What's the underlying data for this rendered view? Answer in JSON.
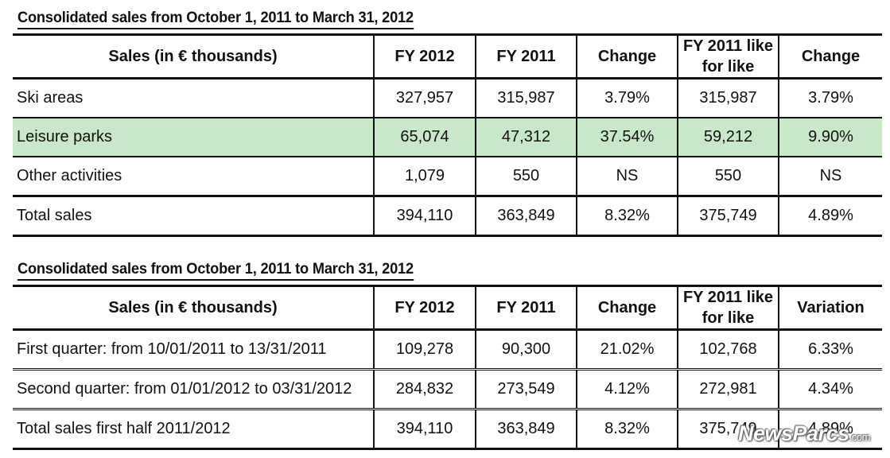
{
  "table1": {
    "caption": "Consolidated sales from October 1, 2011 to March 31, 2012",
    "headers": [
      "Sales (in € thousands)",
      "FY 2012",
      "FY 2011",
      "Change",
      "FY 2011  like for like",
      "Change"
    ],
    "rows": [
      [
        "Ski areas",
        "327,957",
        "315,987",
        "3.79%",
        "315,987",
        "3.79%"
      ],
      [
        "Leisure parks",
        "65,074",
        "47,312",
        "37.54%",
        "59,212",
        "9.90%"
      ],
      [
        "Other activities",
        "1,079",
        "550",
        "NS",
        "550",
        "NS"
      ],
      [
        "Total sales",
        "394,110",
        "363,849",
        "8.32%",
        "375,749",
        "4.89%"
      ]
    ],
    "highlight_color": "#c9e7c9"
  },
  "table2": {
    "caption": "Consolidated sales from October 1, 2011 to March 31, 2012",
    "headers": [
      "Sales (in € thousands)",
      "FY 2012",
      "FY 2011",
      "Change",
      "FY 2011 like for like",
      "Variation"
    ],
    "rows": [
      [
        "First quarter: from 10/01/2011 to 13/31/2011",
        "109,278",
        "90,300",
        "21.02%",
        "102,768",
        "6.33%"
      ],
      [
        "Second quarter: from 01/01/2012 to 03/31/2012",
        "284,832",
        "273,549",
        "4.12%",
        "272,981",
        "4.34%"
      ],
      [
        "Total sales first half 2011/2012",
        "394,110",
        "363,849",
        "8.32%",
        "375,749",
        "4.89%"
      ]
    ]
  },
  "watermark": {
    "brand": "NewsParcs",
    "suffix": ".com"
  }
}
